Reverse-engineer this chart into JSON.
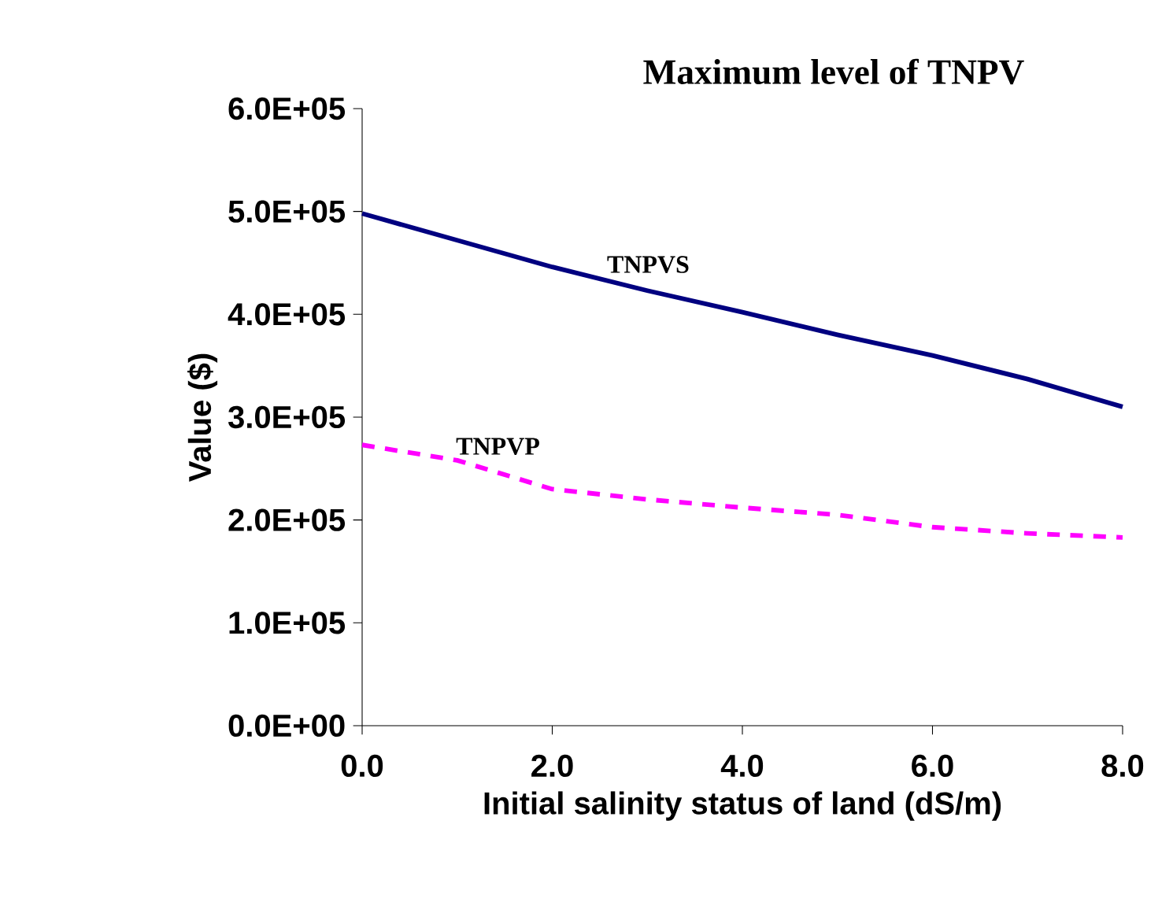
{
  "chart_data": {
    "type": "line",
    "title": "Maximum level of TNPV",
    "xlabel": "Initial salinity status of land (dS/m)",
    "ylabel": "Value ($)",
    "x": [
      0,
      1,
      2,
      3,
      4,
      5,
      6,
      7,
      8
    ],
    "series": [
      {
        "name": "TNPVS",
        "color": "#000080",
        "line_style": "solid",
        "values": [
          498000,
          472000,
          446000,
          423000,
          402000,
          380000,
          360000,
          337000,
          310000
        ]
      },
      {
        "name": "TNPVP",
        "color": "#ff00ff",
        "line_style": "dashed",
        "values": [
          273000,
          258000,
          230000,
          220000,
          212000,
          205000,
          193000,
          187000,
          183000
        ]
      }
    ],
    "xlim": [
      0,
      8
    ],
    "ylim": [
      0,
      600000
    ],
    "xticks": [
      {
        "value": 0,
        "label": "0.0"
      },
      {
        "value": 2,
        "label": "2.0"
      },
      {
        "value": 4,
        "label": "4.0"
      },
      {
        "value": 6,
        "label": "6.0"
      },
      {
        "value": 8,
        "label": "8.0"
      }
    ],
    "yticks": [
      {
        "value": 0,
        "label": "0.0E+00"
      },
      {
        "value": 100000,
        "label": "1.0E+05"
      },
      {
        "value": 200000,
        "label": "2.0E+05"
      },
      {
        "value": 300000,
        "label": "3.0E+05"
      },
      {
        "value": 400000,
        "label": "4.0E+05"
      },
      {
        "value": 500000,
        "label": "5.0E+05"
      },
      {
        "value": 600000,
        "label": "6.0E+05"
      }
    ],
    "grid": false,
    "legend": false,
    "marker": "none"
  }
}
